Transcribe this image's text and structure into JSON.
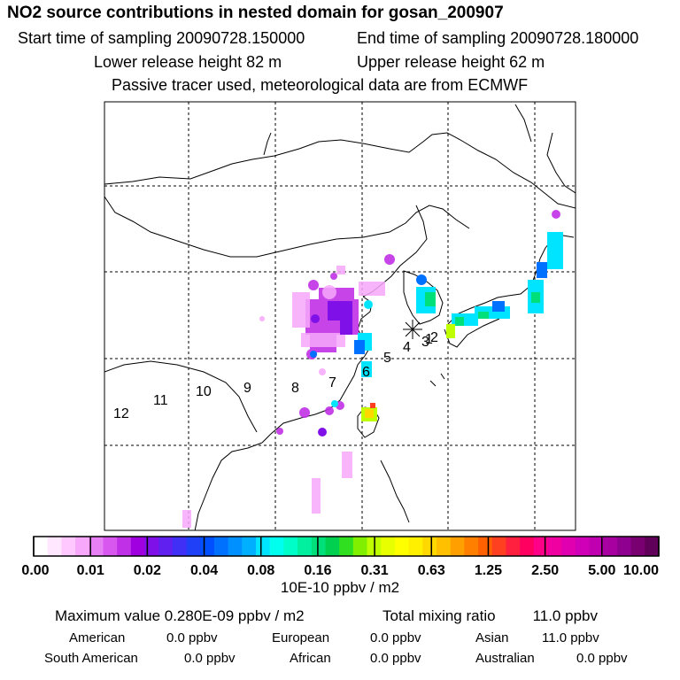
{
  "header": {
    "title": "NO2 source contributions in nested domain for gosan_200907",
    "start_time": "Start time of sampling 20090728.150000",
    "end_time": "End time of sampling 20090728.180000",
    "lower_height": "Lower release height   82 m",
    "upper_height": "Upper release height   62 m",
    "tracer_note": "Passive tracer used, meteorological data are from ECMWF"
  },
  "colorbar": {
    "unit": "10E-10 ppbv / m2",
    "tick_labels": [
      "0.00",
      "0.01",
      "0.02",
      "0.04",
      "0.08",
      "0.16",
      "0.31",
      "0.63",
      "1.25",
      "2.50",
      "5.00",
      "10.00"
    ],
    "colors": [
      "#ffffff",
      "#ffe8ff",
      "#ffc8ff",
      "#f7a8fb",
      "#e880f5",
      "#d858ef",
      "#c030e6",
      "#a000e0",
      "#8010e8",
      "#6020f0",
      "#4030f6",
      "#2040f8",
      "#0050ff",
      "#0070ff",
      "#0090ff",
      "#00b0ff",
      "#00e4ff",
      "#00ffee",
      "#00ffc8",
      "#00f0a0",
      "#00e07a",
      "#00d050",
      "#30e020",
      "#80f000",
      "#c0ff00",
      "#e8ff00",
      "#ffff00",
      "#fff000",
      "#ffd800",
      "#ffc000",
      "#ffa000",
      "#ff8000",
      "#ff6000",
      "#ff4020",
      "#ff2040",
      "#ff0060",
      "#ff0088",
      "#f000a0",
      "#e000b0",
      "#d000b8",
      "#c000b0",
      "#a800a0",
      "#900090",
      "#780070",
      "#600058"
    ]
  },
  "stats": {
    "max_label": "Maximum value  0.280E-09 ppbv / m2",
    "total_label": "Total mixing ratio",
    "total_value": "11.0 ppbv"
  },
  "regions": [
    {
      "name": "American",
      "value": "0.0 ppbv"
    },
    {
      "name": "European",
      "value": "0.0 ppbv"
    },
    {
      "name": "Asian",
      "value": "11.0 ppbv"
    },
    {
      "name": "South American",
      "value": "0.0 ppbv"
    },
    {
      "name": "African",
      "value": "0.0 ppbv"
    },
    {
      "name": "Australian",
      "value": "0.0 ppbv"
    }
  ],
  "chart_data": {
    "type": "heatmap",
    "title": "NO2 source contributions in nested domain for gosan_200907",
    "value_unit": "10E-10 ppbv / m2",
    "max_value": "0.280E-09",
    "color_scale_breaks": [
      0.0,
      0.01,
      0.02,
      0.04,
      0.08,
      0.16,
      0.31,
      0.63,
      1.25,
      2.5,
      5.0,
      10.0
    ],
    "receptor": "gosan",
    "backtrajectory_labels": [
      "1",
      "2",
      "3",
      "4",
      "5",
      "6",
      "7",
      "8",
      "9",
      "10",
      "11",
      "12"
    ],
    "grid": true,
    "legend_position": "bottom"
  }
}
